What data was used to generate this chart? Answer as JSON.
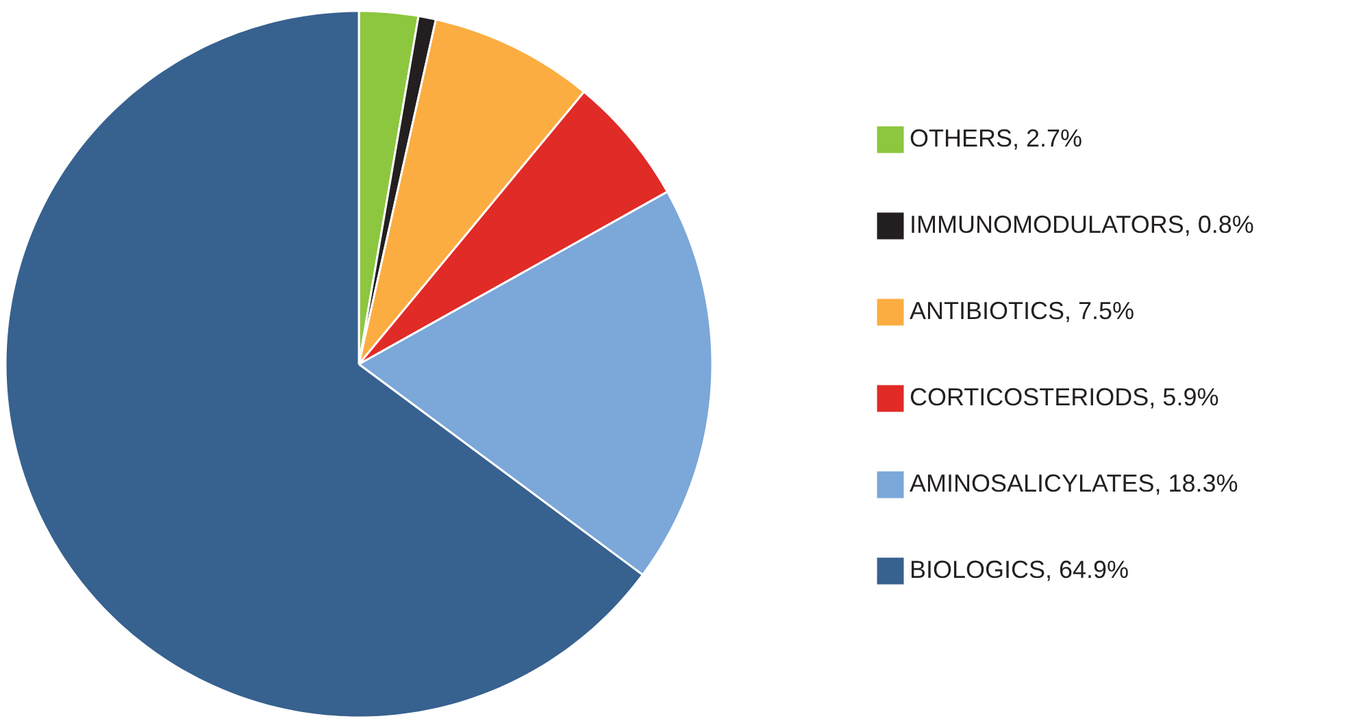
{
  "chart_data": {
    "type": "pie",
    "categories": [
      "OTHERS, 2.7%",
      "IMMUNOMODULATORS, 0.8%",
      "ANTIBIOTICS, 7.5%",
      "CORTICOSTERIODS, 5.9%",
      "AMINOSALICYLATES, 18.3%",
      "BIOLOGICS, 64.9%"
    ],
    "values": [
      2.7,
      0.8,
      7.5,
      5.9,
      18.3,
      64.9
    ],
    "colors": [
      "#8dc63f",
      "#231f20",
      "#fbad42",
      "#e02b27",
      "#7ba7d9",
      "#37618f"
    ],
    "legend": "right"
  }
}
